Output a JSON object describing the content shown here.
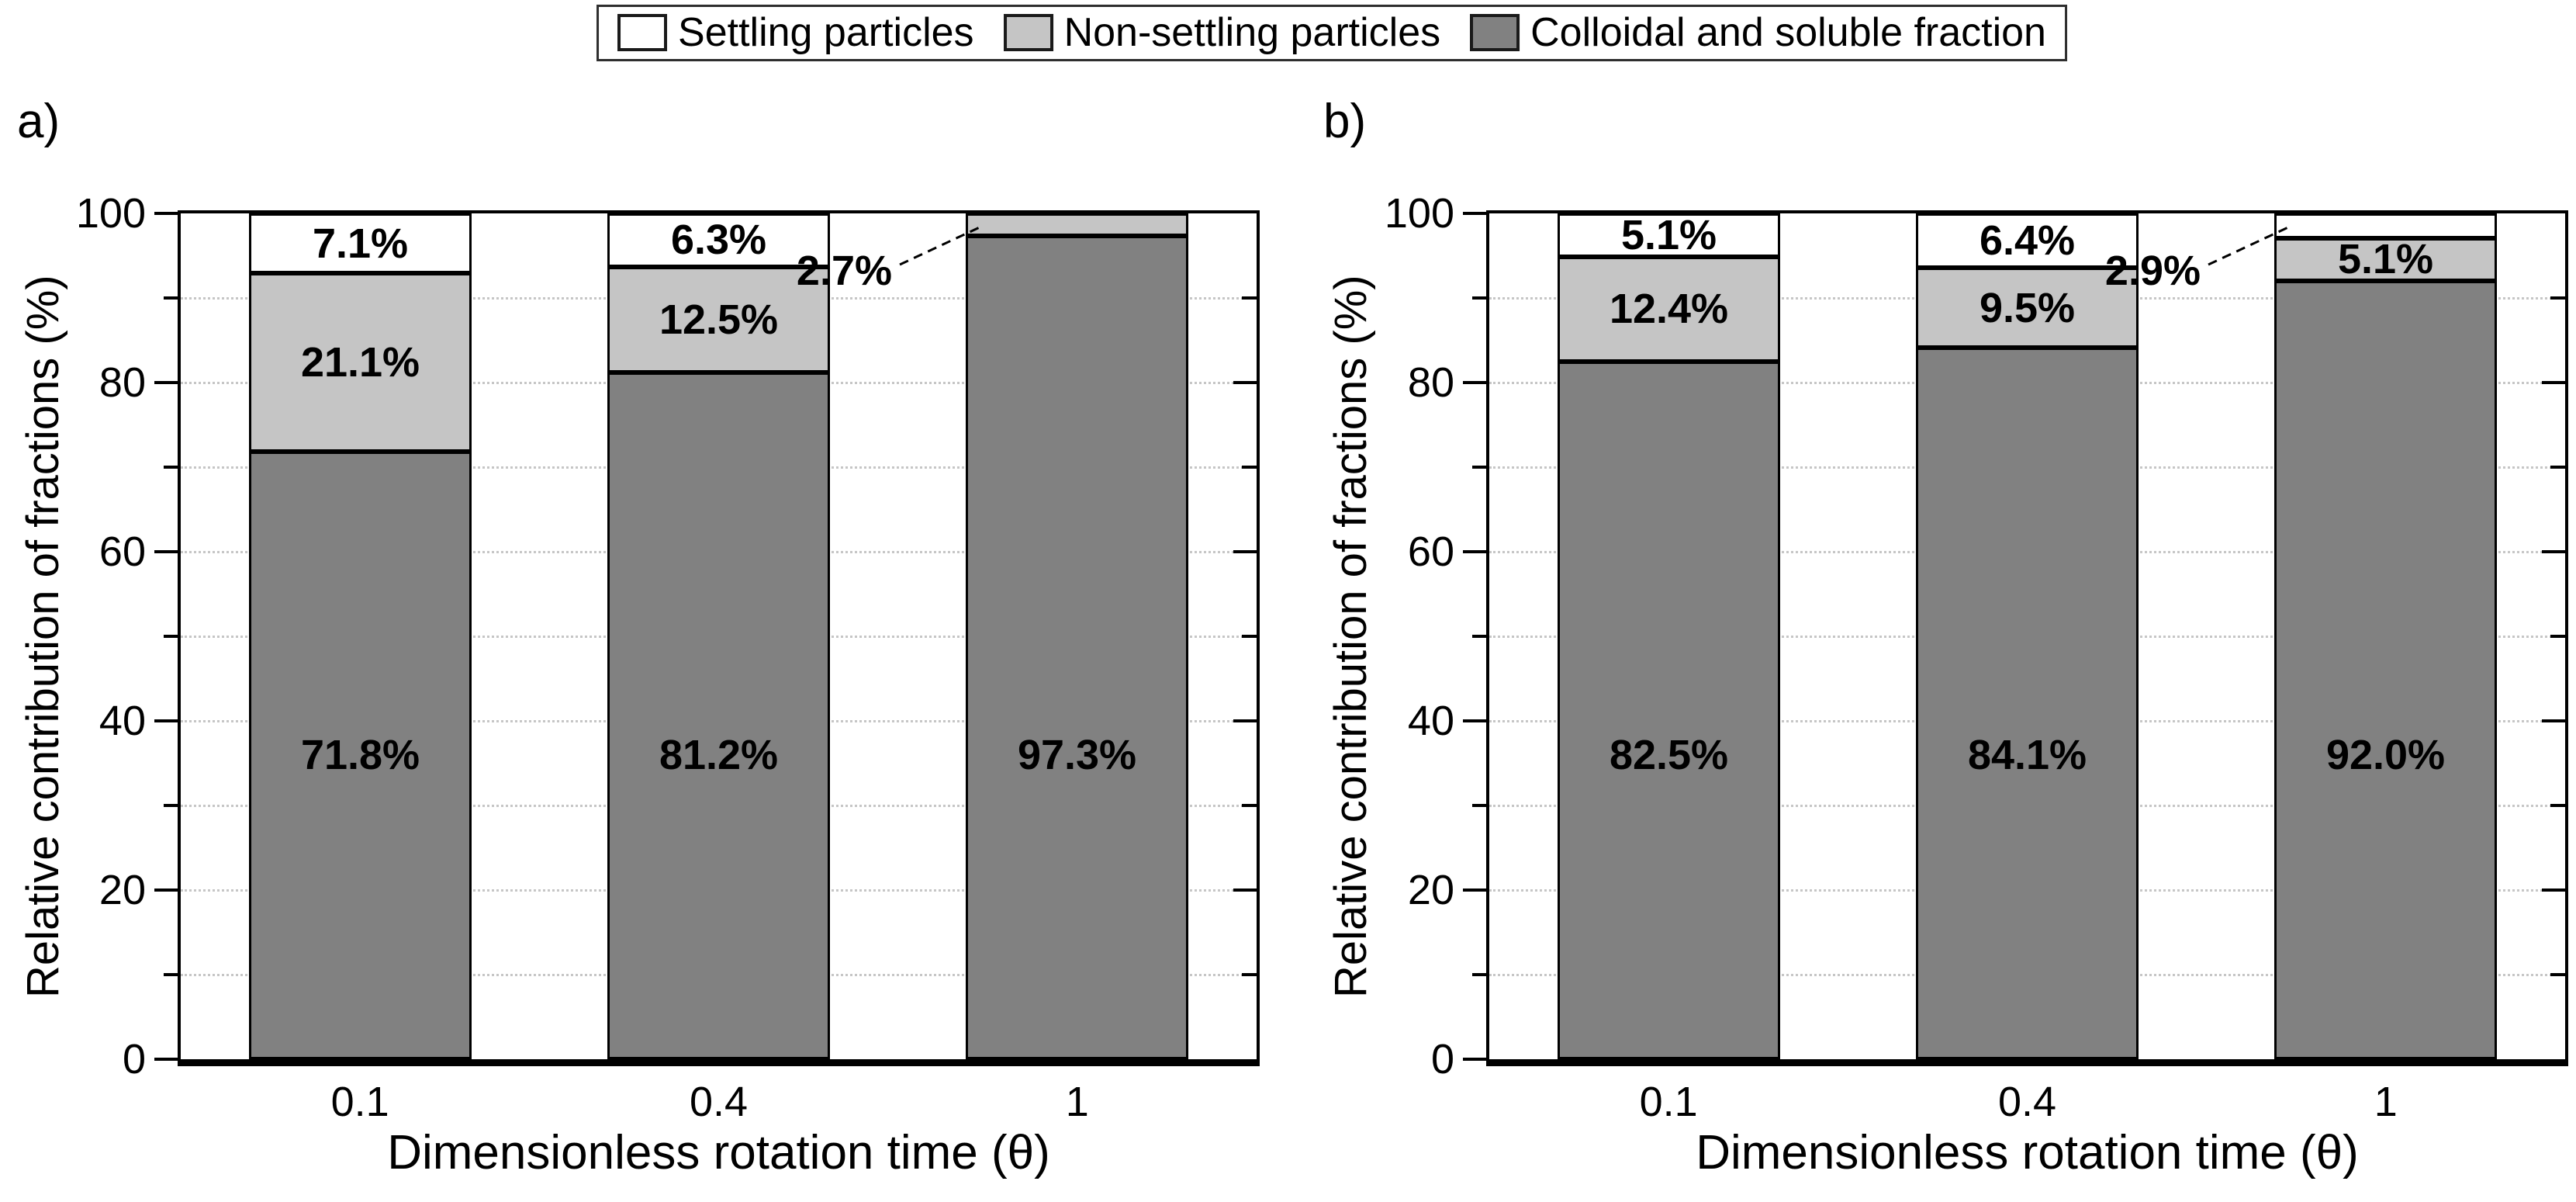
{
  "figure": {
    "background": "#ffffff",
    "panel_a_label": "a)",
    "panel_b_label": "b)"
  },
  "legend": {
    "position": "top-center",
    "border_color": "#2e2e2e",
    "items": [
      {
        "label": "Settling particles",
        "color": "#ffffff"
      },
      {
        "label": "Non-settling particles",
        "color": "#c5c5c5"
      },
      {
        "label": "Colloidal and soluble fraction",
        "color": "#818181"
      }
    ]
  },
  "chart_data": [
    {
      "type": "bar",
      "stacked": true,
      "panel_label": "a)",
      "xlabel": "Dimensionless rotation time (θ)",
      "ylabel": "Relative contribution of fractions (%)",
      "ylim": [
        0,
        100
      ],
      "yticks": [
        0,
        20,
        40,
        60,
        80,
        100
      ],
      "minor_tick_step": 10,
      "grid": "horizontal dotted every 10",
      "categories": [
        "0.1",
        "0.4",
        "1"
      ],
      "series": [
        {
          "name": "Colloidal and soluble fraction",
          "values": [
            71.8,
            81.2,
            97.3
          ]
        },
        {
          "name": "Non-settling particles",
          "values": [
            21.1,
            12.5,
            2.7
          ]
        },
        {
          "name": "Settling particles",
          "values": [
            7.1,
            6.3,
            0
          ]
        }
      ],
      "data_labels": [
        [
          "71.8%",
          "21.1%",
          "7.1%"
        ],
        [
          "81.2%",
          "12.5%",
          "6.3%"
        ],
        [
          "97.3%",
          null,
          null
        ]
      ],
      "callout": {
        "bar_index": 2,
        "series": "Non-settling particles",
        "label": "2.7%"
      }
    },
    {
      "type": "bar",
      "stacked": true,
      "panel_label": "b)",
      "xlabel": "Dimensionless rotation time (θ)",
      "ylabel": "Relative contribution of fractions (%)",
      "ylim": [
        0,
        100
      ],
      "yticks": [
        0,
        20,
        40,
        60,
        80,
        100
      ],
      "minor_tick_step": 10,
      "grid": "horizontal dotted every 10",
      "categories": [
        "0.1",
        "0.4",
        "1"
      ],
      "series": [
        {
          "name": "Colloidal and soluble fraction",
          "values": [
            82.5,
            84.1,
            92.0
          ]
        },
        {
          "name": "Non-settling particles",
          "values": [
            12.4,
            9.5,
            5.1
          ]
        },
        {
          "name": "Settling particles",
          "values": [
            5.1,
            6.4,
            2.9
          ]
        }
      ],
      "data_labels": [
        [
          "82.5%",
          "12.4%",
          "5.1%"
        ],
        [
          "84.1%",
          "9.5%",
          "6.4%"
        ],
        [
          "92.0%",
          "5.1%",
          null
        ]
      ],
      "callout": {
        "bar_index": 2,
        "series": "Settling particles",
        "label": "2.9%"
      }
    }
  ]
}
